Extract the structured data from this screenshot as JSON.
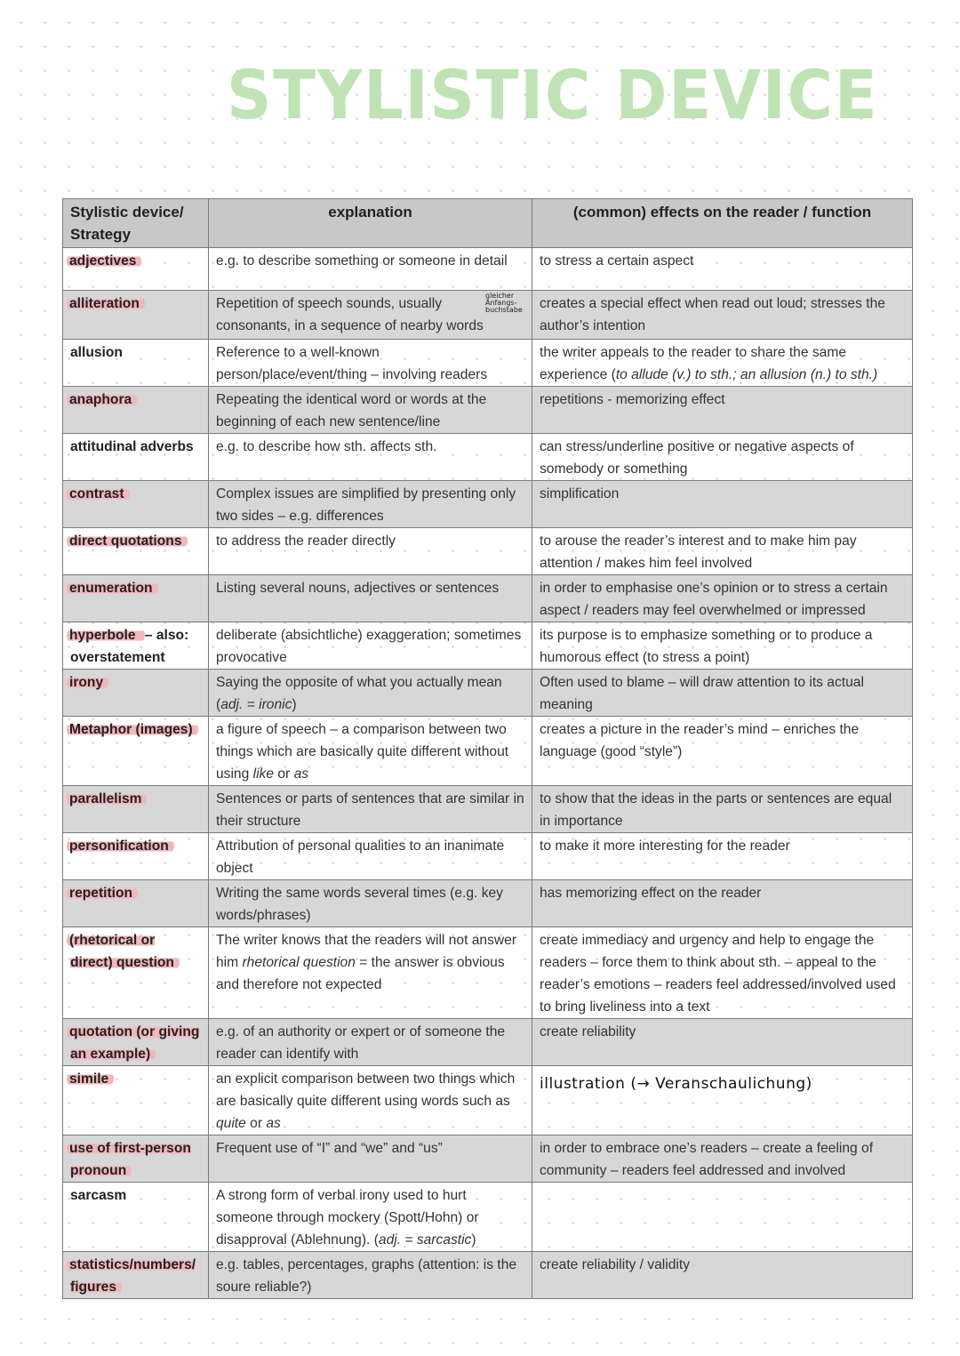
{
  "title": "STYLISTIC DEVICE",
  "headers": [
    "Stylistic device/ Strategy",
    "explanation",
    "(common) effects on the reader / function"
  ],
  "colors": {
    "title": "#bfe3b4",
    "highlight": "#f2b6bb",
    "shaded_row": "#d7d7d7",
    "header": "#c8c8c8"
  },
  "rows": [
    {
      "shaded": false,
      "term": [
        {
          "t": "adjectives",
          "hl": true
        }
      ],
      "explanation": [
        {
          "t": "e.g. to describe something or someone in detail"
        }
      ],
      "effect": [
        {
          "t": "to stress a certain aspect"
        }
      ]
    },
    {
      "shaded": true,
      "term": [
        {
          "t": "alliteration",
          "hl": true
        }
      ],
      "explanation": [
        {
          "t": "Repetition of speech sounds, usually consonants, in a sequence of nearby words"
        }
      ],
      "note": "gleicher Anfangs- buchstabe",
      "effect": [
        {
          "t": "creates a special effect when read out loud; stresses the author’s intention"
        }
      ]
    },
    {
      "shaded": false,
      "term": [
        {
          "t": "allusion"
        }
      ],
      "explanation": [
        {
          "t": "Reference to a well-known person/place/event/thing – involving readers"
        }
      ],
      "effect": [
        {
          "t": "the writer appeals to the reader to share the same experience ("
        },
        {
          "t": "to allude (v.) to sth.; an allusion (n.) to sth.)",
          "i": true
        }
      ]
    },
    {
      "shaded": true,
      "term": [
        {
          "t": "anaphora",
          "hl": true
        }
      ],
      "explanation": [
        {
          "t": "Repeating the identical word or words at the beginning of each new sentence/line"
        }
      ],
      "effect": [
        {
          "t": "repetitions - memorizing effect"
        }
      ]
    },
    {
      "shaded": false,
      "term": [
        {
          "t": "attitudinal adverbs"
        }
      ],
      "explanation": [
        {
          "t": "e.g. to describe how sth. affects sth."
        }
      ],
      "effect": [
        {
          "t": "can stress/underline positive or negative aspects of somebody or something"
        }
      ]
    },
    {
      "shaded": true,
      "term": [
        {
          "t": "contrast",
          "hl": true
        }
      ],
      "explanation": [
        {
          "t": "Complex issues are simplified by presenting only two sides – e.g. differences"
        }
      ],
      "effect": [
        {
          "t": "simplification"
        }
      ]
    },
    {
      "shaded": false,
      "term": [
        {
          "t": "direct quotations",
          "hl": true
        }
      ],
      "explanation": [
        {
          "t": "to address the reader directly"
        }
      ],
      "effect": [
        {
          "t": "to arouse the reader’s interest and to make him pay attention / makes him feel involved"
        }
      ]
    },
    {
      "shaded": true,
      "term": [
        {
          "t": "enumeration",
          "hl": true
        }
      ],
      "explanation": [
        {
          "t": "Listing several nouns, adjectives or sentences"
        }
      ],
      "effect": [
        {
          "t": "in order to emphasise one’s opinion or to stress a certain aspect  / readers may feel overwhelmed or impressed"
        }
      ]
    },
    {
      "shaded": false,
      "term": [
        {
          "t": "hyperbole ",
          "hl": true
        },
        {
          "t": "– also: overstatement"
        }
      ],
      "explanation": [
        {
          "t": "deliberate (absichtliche) exaggeration; sometimes provocative"
        }
      ],
      "effect": [
        {
          "t": "its purpose is to emphasize something or to produce a humorous effect (to stress a point)"
        }
      ]
    },
    {
      "shaded": true,
      "term": [
        {
          "t": "irony",
          "hl": true
        }
      ],
      "explanation": [
        {
          "t": "Saying the opposite of what you actually mean ("
        },
        {
          "t": "adj. = ironic",
          "i": true
        },
        {
          "t": ")"
        }
      ],
      "effect": [
        {
          "t": "Often used to blame – will draw attention to its actual meaning"
        }
      ]
    },
    {
      "shaded": false,
      "term": [
        {
          "t": "Metaphor (images)",
          "hl": true
        }
      ],
      "explanation": [
        {
          "t": "a figure of speech – a comparison between two things which are basically quite different without using "
        },
        {
          "t": "like",
          "i": true
        },
        {
          "t": " or "
        },
        {
          "t": "as",
          "i": true
        }
      ],
      "effect": [
        {
          "t": "creates a picture in the reader’s mind – enriches the language (good “style”)"
        }
      ]
    },
    {
      "shaded": true,
      "term": [
        {
          "t": "parallelism",
          "hl": true
        }
      ],
      "explanation": [
        {
          "t": "Sentences or parts of sentences that are similar in their structure"
        }
      ],
      "effect": [
        {
          "t": "to show that the ideas in the parts or sentences are equal in importance"
        }
      ]
    },
    {
      "shaded": false,
      "term": [
        {
          "t": "personification",
          "hl": true
        }
      ],
      "explanation": [
        {
          "t": "Attribution of personal qualities to an inanimate object"
        }
      ],
      "effect": [
        {
          "t": "to make it more interesting for the reader"
        }
      ]
    },
    {
      "shaded": true,
      "term": [
        {
          "t": "repetition",
          "hl": true
        }
      ],
      "explanation": [
        {
          "t": "Writing the same words several times (e.g. key words/phrases)"
        }
      ],
      "effect": [
        {
          "t": "has memorizing effect on the reader"
        }
      ]
    },
    {
      "shaded": false,
      "term": [
        {
          "t": "(rhetorical or direct) question",
          "hl": true
        }
      ],
      "explanation": [
        {
          "t": "The writer knows that the readers will not answer him "
        },
        {
          "t": "rhetorical question",
          "i": true
        },
        {
          "t": " = the answer is obvious and therefore not expected"
        }
      ],
      "effect": [
        {
          "t": "create immediacy and urgency and help to engage the readers – force them to think about sth. – appeal to the reader’s emotions – readers feel addressed/involved used to bring liveliness into a text"
        }
      ]
    },
    {
      "shaded": true,
      "term": [
        {
          "t": "quotation (or giving an example)",
          "hl": true
        }
      ],
      "explanation": [
        {
          "t": "e.g. of an authority or expert or of someone the reader can identify with"
        }
      ],
      "effect": [
        {
          "t": "create reliability"
        }
      ]
    },
    {
      "shaded": false,
      "term": [
        {
          "t": "simile",
          "hl": true
        }
      ],
      "explanation": [
        {
          "t": "an explicit comparison between two things which are basically quite different using words such as "
        },
        {
          "t": "quite",
          "i": true
        },
        {
          "t": " or "
        },
        {
          "t": "as",
          "i": true
        }
      ],
      "effect": [
        {
          "t": "illustration (→ Veranschaulichung)",
          "hand": true
        }
      ]
    },
    {
      "shaded": true,
      "term": [
        {
          "t": "use of first-person pronoun",
          "hl": true
        }
      ],
      "explanation": [
        {
          "t": "Frequent use of “I” and “we” and “us”"
        }
      ],
      "effect": [
        {
          "t": "in order to embrace one’s readers – create a feeling of community – readers feel addressed and involved"
        }
      ]
    },
    {
      "shaded": false,
      "term": [
        {
          "t": "sarcasm"
        }
      ],
      "explanation": [
        {
          "t": "A strong form of verbal irony used to hurt someone through mockery (Spott/Hohn) or disapproval (Ablehnung). ("
        },
        {
          "t": "adj. = sarcastic",
          "i": true
        },
        {
          "t": ")"
        }
      ],
      "effect": []
    },
    {
      "shaded": true,
      "term": [
        {
          "t": "statistics/numbers/ figures",
          "hl": true
        }
      ],
      "explanation": [
        {
          "t": "e.g. tables, percentages, graphs (attention: is the soure reliable?)"
        }
      ],
      "effect": [
        {
          "t": "create reliability / validity"
        }
      ]
    }
  ]
}
